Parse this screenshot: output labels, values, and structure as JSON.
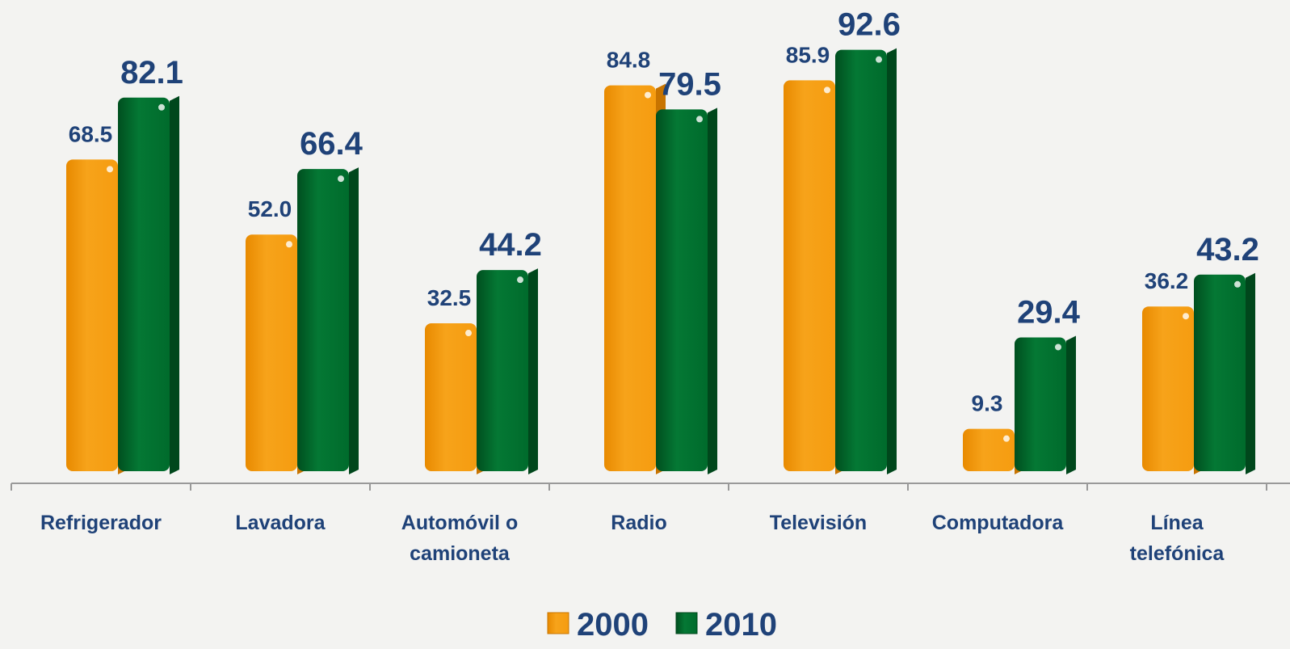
{
  "chart_data": {
    "type": "bar",
    "categories": [
      "Refrigerador",
      "Lavadora",
      "Automóvil o camioneta",
      "Radio",
      "Televisión",
      "Computadora",
      "Línea telefónica"
    ],
    "series": [
      {
        "name": "2000",
        "color": "#f39a0c",
        "values": [
          68.5,
          52,
          32.5,
          84.8,
          85.9,
          9.3,
          36.2
        ],
        "value_labels": [
          "68.5",
          "52.0",
          "32.5",
          "84.8",
          "85.9",
          "9.3",
          "36.2"
        ]
      },
      {
        "name": "2010",
        "color": "#006b2c",
        "values": [
          82.1,
          66.4,
          44.2,
          79.5,
          92.6,
          29.4,
          43.2
        ],
        "value_labels": [
          "82.1",
          "66.4",
          "44.2",
          "79.5",
          "92.6",
          "29.4",
          "43.2"
        ]
      }
    ],
    "ylim": [
      0,
      100
    ],
    "legend": "bottom"
  }
}
